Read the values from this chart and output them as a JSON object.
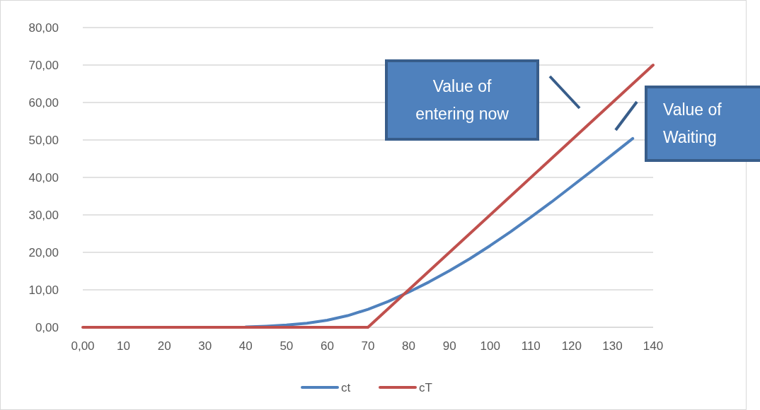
{
  "chart_data": {
    "type": "line",
    "series": [
      {
        "name": "ct",
        "color": "#4f81bd",
        "x": [
          40,
          45,
          50,
          55,
          60,
          65,
          70,
          75,
          80,
          85,
          90,
          95,
          100,
          105,
          110,
          115,
          120,
          125,
          130,
          135
        ],
        "values": [
          0.1,
          0.3,
          0.6,
          1.1,
          1.9,
          3.1,
          4.8,
          6.9,
          9.4,
          12.1,
          15.1,
          18.3,
          21.8,
          25.5,
          29.4,
          33.4,
          37.6,
          41.8,
          46.1,
          50.4
        ]
      },
      {
        "name": "cT",
        "color": "#c0504d",
        "x": [
          0,
          70,
          140
        ],
        "values": [
          0,
          0,
          70
        ]
      }
    ],
    "xlim": [
      0,
      140
    ],
    "xticks": [
      {
        "value": 0,
        "label": "0,00"
      },
      10,
      20,
      30,
      40,
      50,
      60,
      70,
      80,
      90,
      100,
      110,
      120,
      130,
      140
    ],
    "ylim": [
      0,
      80
    ],
    "yticks": [
      {
        "value": 0,
        "label": "0,00"
      },
      {
        "value": 10,
        "label": "10,00"
      },
      {
        "value": 20,
        "label": "20,00"
      },
      {
        "value": 30,
        "label": "30,00"
      },
      {
        "value": 40,
        "label": "40,00"
      },
      {
        "value": 50,
        "label": "50,00"
      },
      {
        "value": 60,
        "label": "60,00"
      },
      {
        "value": 70,
        "label": "70,00"
      },
      {
        "value": 80,
        "label": "80,00"
      }
    ],
    "grid": "y",
    "legend": "bottom",
    "marker": "none",
    "line_style": "solid",
    "annotations": [
      "Value of entering now",
      "Value of Waiting"
    ]
  }
}
